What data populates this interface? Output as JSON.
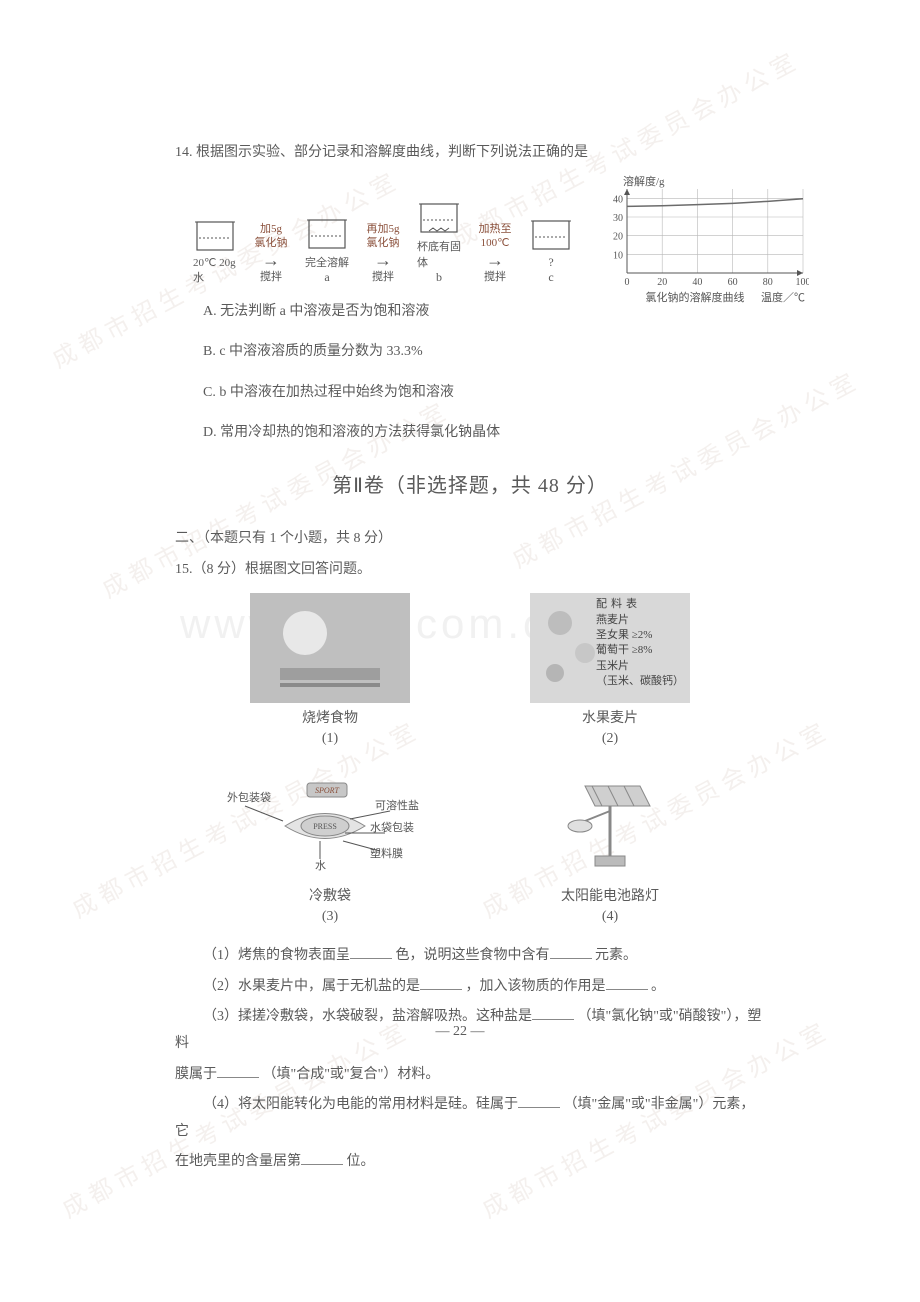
{
  "questions": {
    "q14": {
      "stem": "14. 根据图示实验、部分记录和溶解度曲线，判断下列说法正确的是",
      "beakers": {
        "start_label_top": "20℃ 20g水",
        "step1": {
          "top1": "加5g",
          "top2": "氯化钠",
          "below": "搅拌"
        },
        "state_a": {
          "label": "完全溶解",
          "tag": "a"
        },
        "step2": {
          "top1": "再加5g",
          "top2": "氯化钠",
          "below": "搅拌"
        },
        "state_b": {
          "label": "杯底有固体",
          "tag": "b"
        },
        "step3": {
          "top1": "加热至",
          "top2": "100℃",
          "below": "搅拌"
        },
        "state_c": {
          "label": "?",
          "tag": "c"
        }
      },
      "chart": {
        "ylabel": "溶解度/g",
        "xlabel": "温度／℃",
        "caption": "氯化钠的溶解度曲线",
        "x_ticks": [
          0,
          20,
          40,
          60,
          80,
          100
        ],
        "y_ticks": [
          10,
          20,
          30,
          40
        ],
        "xlim": [
          0,
          100
        ],
        "ylim": [
          0,
          45
        ],
        "series_color": "#6b6b6b",
        "grid_color": "#b8b8b8",
        "points": [
          [
            0,
            35.7
          ],
          [
            20,
            36.0
          ],
          [
            40,
            36.6
          ],
          [
            60,
            37.3
          ],
          [
            80,
            38.4
          ],
          [
            100,
            39.8
          ]
        ]
      },
      "opts": {
        "A": "A. 无法判断 a 中溶液是否为饱和溶液",
        "B": "B. c 中溶液溶质的质量分数为 33.3%",
        "C": "C. b 中溶液在加热过程中始终为饱和溶液",
        "D": "D. 常用冷却热的饱和溶液的方法获得氯化钠晶体"
      }
    },
    "part2_title": "第Ⅱ卷（非选择题，共 48 分）",
    "sec2_head": "二、（本题只有 1 个小题，共 8 分）",
    "q15": {
      "stem": "15.（8 分）根据图文回答问题。",
      "figs": {
        "f1": {
          "caption": "烧烤食物",
          "idx": "(1)"
        },
        "f2": {
          "caption": "水果麦片",
          "idx": "(2)",
          "table_title": "配料表",
          "rows": [
            "燕麦片",
            "圣女果 ≥2%",
            "葡萄干 ≥8%",
            "玉米片",
            "（玉米、碳酸钙）"
          ]
        },
        "f3": {
          "caption": "冷敷袋",
          "idx": "(3)",
          "labels": {
            "l1": "外包装袋",
            "l2": "可溶性盐",
            "l3": "水袋包装",
            "l4": "塑料膜",
            "l5": "水",
            "brand": "SPORT",
            "press": "PRESS"
          }
        },
        "f4": {
          "caption": "太阳能电池路灯",
          "idx": "(4)"
        }
      },
      "sub": {
        "s1a": "（1）烤焦的食物表面呈",
        "s1b": "色，说明这些食物中含有",
        "s1c": "元素。",
        "s2a": "（2）水果麦片中，属于无机盐的是",
        "s2b": "，加入该物质的作用是",
        "s2c": "。",
        "s3a": "（3）揉搓冷敷袋，水袋破裂，盐溶解吸热。这种盐是",
        "s3b": "（填\"氯化钠\"或\"硝酸铵\"），塑料",
        "s3line2a": "膜属于",
        "s3line2b": "（填\"合成\"或\"复合\"）材料。",
        "s4a": "（4）将太阳能转化为电能的常用材料是硅。硅属于",
        "s4b": "（填\"金属\"或\"非金属\"）元素，它",
        "s4line2a": "在地壳里的含量居第",
        "s4line2b": "位。"
      }
    }
  },
  "page_num": "— 22 —",
  "watermark": "www.zixin.com.cn",
  "diag_wm": "成都市招生考试委员会办公室",
  "colors": {
    "text": "#5a5a5a",
    "accent_red": "#8a4f3a",
    "light_gray": "#d8d8d8",
    "wm_gray": "#e6e6e6"
  }
}
